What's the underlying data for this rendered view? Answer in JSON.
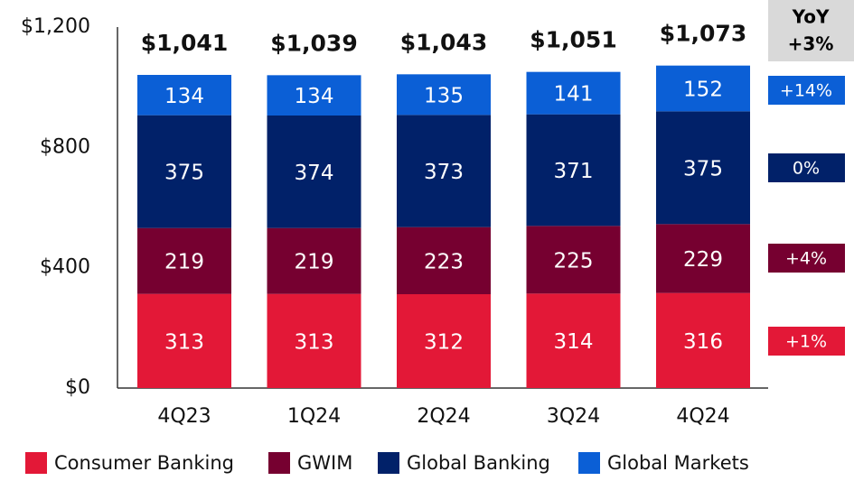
{
  "chart_data": {
    "type": "stacked_bar",
    "categories": [
      "4Q23",
      "1Q24",
      "2Q24",
      "3Q24",
      "4Q24"
    ],
    "series": [
      {
        "name": "Consumer Banking",
        "color": "#e31837",
        "values": [
          313,
          313,
          312,
          314,
          316
        ]
      },
      {
        "name": "GWIM",
        "color": "#760030",
        "values": [
          219,
          219,
          223,
          225,
          229
        ]
      },
      {
        "name": "Global Banking",
        "color": "#012169",
        "values": [
          375,
          374,
          373,
          371,
          375
        ]
      },
      {
        "name": "Global Markets",
        "color": "#0b5fd6",
        "values": [
          134,
          134,
          135,
          141,
          152
        ]
      }
    ],
    "totals": {
      "values": [
        1041,
        1039,
        1043,
        1051,
        1073
      ],
      "value_labels": [
        "$1,041",
        "$1,039",
        "$1,043",
        "$1,051",
        "$1,073"
      ]
    },
    "yoy": {
      "title": "YoY",
      "total": "+3%",
      "series": [
        "+1%",
        "+4%",
        "0%",
        "+14%"
      ]
    },
    "ylim": [
      0,
      1200
    ],
    "yticks": [
      {
        "value": 0,
        "label": "$0"
      },
      {
        "value": 400,
        "label": "$400"
      },
      {
        "value": 800,
        "label": "$800"
      },
      {
        "value": 1200,
        "label": "$1,200"
      }
    ],
    "grid": false
  }
}
